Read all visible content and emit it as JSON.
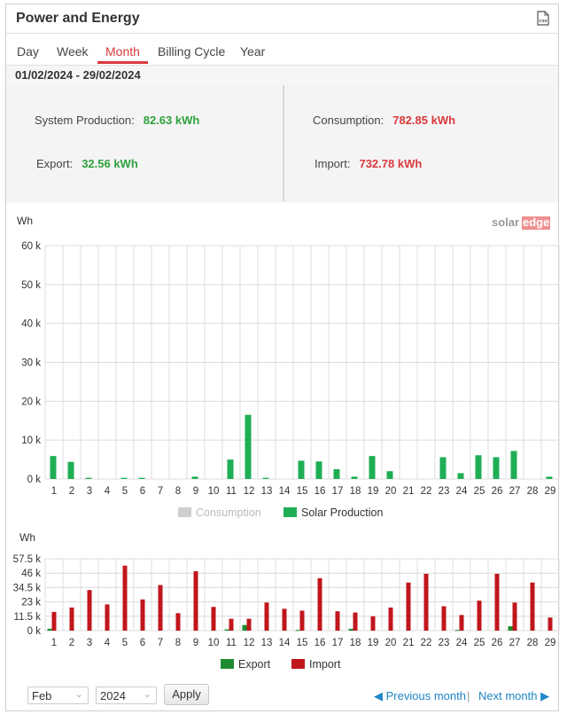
{
  "header": {
    "title": "Power and Energy",
    "csv_icon_label": "CSV"
  },
  "tabs": [
    "Day",
    "Week",
    "Month",
    "Billing Cycle",
    "Year"
  ],
  "active_tab": "Month",
  "date_range": "01/02/2024 - 29/02/2024",
  "summary": {
    "system_production_label": "System Production:",
    "system_production_value": "82.63 kWh",
    "export_label": "Export:",
    "export_value": "32.56 kWh",
    "consumption_label": "Consumption:",
    "consumption_value": "782.85 kWh",
    "import_label": "Import:",
    "import_value": "732.78 kWh"
  },
  "brand": {
    "solar": "solar",
    "edge": "edge"
  },
  "colors": {
    "production": "#1fae54",
    "consumption": "#cfcfcf",
    "export": "#1e8c2e",
    "import": "#c0161c",
    "accent": "#d9393d",
    "link": "#1f86c7"
  },
  "chart_data": [
    {
      "type": "bar",
      "ylabel": "Wh",
      "ylim": [
        0,
        60000
      ],
      "yticks": [
        0,
        10000,
        20000,
        30000,
        40000,
        50000,
        60000
      ],
      "ytick_labels": [
        "0 k",
        "10 k",
        "20 k",
        "30 k",
        "40 k",
        "50 k",
        "60 k"
      ],
      "categories": [
        "1",
        "2",
        "3",
        "4",
        "5",
        "6",
        "7",
        "8",
        "9",
        "10",
        "11",
        "12",
        "13",
        "14",
        "15",
        "16",
        "17",
        "18",
        "19",
        "20",
        "21",
        "22",
        "23",
        "24",
        "25",
        "26",
        "27",
        "28",
        "29"
      ],
      "series": [
        {
          "name": "Consumption",
          "values": [
            0,
            0,
            0,
            0,
            0,
            0,
            0,
            0,
            0,
            0,
            0,
            0,
            0,
            0,
            0,
            0,
            0,
            0,
            0,
            0,
            0,
            0,
            0,
            0,
            0,
            0,
            0,
            0,
            0
          ]
        },
        {
          "name": "Solar Production",
          "values": [
            5900,
            4400,
            300,
            0,
            300,
            300,
            0,
            0,
            600,
            0,
            5000,
            16500,
            300,
            0,
            4700,
            4500,
            2500,
            600,
            5900,
            2000,
            0,
            0,
            5600,
            1500,
            6100,
            5600,
            7200,
            0,
            600
          ]
        }
      ],
      "legend": "bottom",
      "grid": true
    },
    {
      "type": "bar",
      "ylabel": "Wh",
      "ylim": [
        0,
        57500
      ],
      "yticks": [
        0,
        11500,
        23000,
        34500,
        46000,
        57500
      ],
      "ytick_labels": [
        "0 k",
        "11.5 k",
        "23 k",
        "34.5 k",
        "46 k",
        "57.5 k"
      ],
      "categories": [
        "1",
        "2",
        "3",
        "4",
        "5",
        "6",
        "7",
        "8",
        "9",
        "10",
        "11",
        "12",
        "13",
        "14",
        "15",
        "16",
        "17",
        "18",
        "19",
        "20",
        "21",
        "22",
        "23",
        "24",
        "25",
        "26",
        "27",
        "28",
        "29"
      ],
      "series": [
        {
          "name": "Export",
          "values": [
            1500,
            0,
            0,
            0,
            0,
            0,
            0,
            0,
            0,
            0,
            1000,
            4500,
            0,
            0,
            500,
            0,
            0,
            1500,
            0,
            0,
            0,
            0,
            0,
            500,
            0,
            0,
            3500,
            0,
            0
          ]
        },
        {
          "name": "Import",
          "values": [
            15000,
            18500,
            32500,
            21000,
            52000,
            25000,
            36500,
            14000,
            47500,
            19000,
            9500,
            9500,
            22500,
            17500,
            16000,
            42000,
            15500,
            14500,
            11500,
            18500,
            38500,
            45500,
            19500,
            12500,
            24000,
            45500,
            22500,
            38500,
            10500
          ]
        }
      ],
      "legend": "bottom",
      "grid": true
    }
  ],
  "footer": {
    "month_value": "Feb",
    "year_value": "2024",
    "apply_label": "Apply",
    "prev_label": "Previous month",
    "next_label": "Next month",
    "separator": "|"
  }
}
